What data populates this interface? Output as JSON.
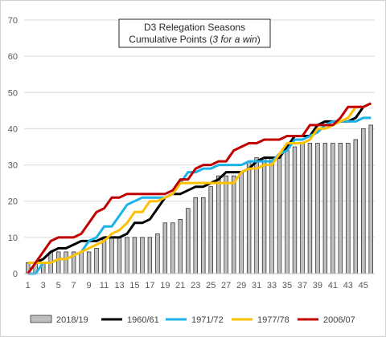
{
  "chart_data": {
    "type": "bar+line",
    "title": "D3 Relegation Seasons",
    "subtitle_prefix": "Cumulative Points (",
    "subtitle_italic": "3 for a win",
    "subtitle_suffix": ")",
    "ylim": [
      0,
      70
    ],
    "yticks": [
      "0",
      "10",
      "20",
      "30",
      "40",
      "50",
      "60",
      "70"
    ],
    "x": [
      1,
      2,
      3,
      4,
      5,
      6,
      7,
      8,
      9,
      10,
      11,
      12,
      13,
      14,
      15,
      16,
      17,
      18,
      19,
      20,
      21,
      22,
      23,
      24,
      25,
      26,
      27,
      28,
      29,
      30,
      31,
      32,
      33,
      34,
      35,
      36,
      37,
      38,
      39,
      40,
      41,
      42,
      43,
      44,
      45,
      46
    ],
    "xtick_labels": [
      "1",
      "3",
      "5",
      "7",
      "9",
      "11",
      "13",
      "15",
      "17",
      "19",
      "21",
      "23",
      "25",
      "27",
      "29",
      "31",
      "33",
      "35",
      "37",
      "39",
      "41",
      "43",
      "45"
    ],
    "grid": "horizontal",
    "legend_position": "bottom",
    "bar_series": {
      "name": "2018/19",
      "color": "#bfbfbf",
      "values": [
        3,
        3,
        3,
        6,
        6,
        6,
        6,
        6,
        6,
        7,
        10,
        10,
        10,
        10,
        10,
        10,
        10,
        11,
        14,
        14,
        15,
        18,
        21,
        21,
        24,
        27,
        27,
        27,
        28,
        31,
        32,
        32,
        32,
        33,
        34,
        35,
        36,
        36,
        36,
        36,
        36,
        36,
        36,
        37,
        40,
        41
      ]
    },
    "series": [
      {
        "name": "1960/61",
        "color": "#000000",
        "values": [
          3,
          3,
          4,
          6,
          7,
          7,
          8,
          9,
          9,
          9,
          10,
          10,
          10,
          11,
          14,
          14,
          15,
          18,
          21,
          22,
          22,
          23,
          24,
          24,
          25,
          26,
          28,
          28,
          28,
          29,
          31,
          32,
          32,
          32,
          35,
          38,
          38,
          38,
          41,
          42,
          42,
          42,
          42,
          43,
          46,
          47
        ]
      },
      {
        "name": "1971/72",
        "color": "#1ab2e8",
        "values": [
          0,
          0,
          3,
          3,
          4,
          4,
          5,
          6,
          9,
          10,
          13,
          13,
          16,
          19,
          20,
          21,
          21,
          21,
          21,
          22,
          25,
          28,
          28,
          29,
          29,
          30,
          30,
          30,
          30,
          31,
          31,
          31,
          31,
          33,
          34,
          37,
          37,
          38,
          39,
          41,
          42,
          42,
          42,
          42,
          43,
          43
        ]
      },
      {
        "name": "1977/78",
        "color": "#ffc000",
        "values": [
          3,
          3,
          3,
          3,
          4,
          4,
          5,
          6,
          7,
          8,
          9,
          11,
          12,
          14,
          17,
          17,
          20,
          20,
          21,
          22,
          25,
          25,
          25,
          25,
          25,
          25,
          25,
          25,
          28,
          29,
          29,
          30,
          30,
          33,
          36,
          36,
          36,
          37,
          40,
          40,
          41,
          42,
          43,
          46,
          46,
          47
        ]
      },
      {
        "name": "2006/07",
        "color": "#c00000",
        "values": [
          0,
          3,
          6,
          9,
          10,
          10,
          10,
          11,
          14,
          17,
          18,
          21,
          21,
          22,
          22,
          22,
          22,
          22,
          22,
          23,
          26,
          26,
          29,
          30,
          30,
          31,
          31,
          34,
          35,
          36,
          36,
          37,
          37,
          37,
          38,
          38,
          38,
          41,
          41,
          41,
          41,
          43,
          46,
          46,
          46,
          47
        ]
      }
    ]
  }
}
